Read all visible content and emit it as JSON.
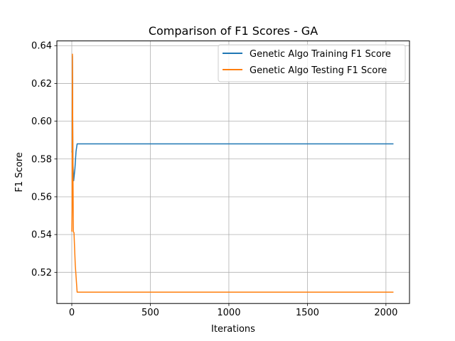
{
  "chart_data": {
    "type": "line",
    "title": "Comparison of F1 Scores - GA",
    "xlabel": "Iterations",
    "ylabel": "F1 Score",
    "xlim": [
      -95,
      2150
    ],
    "ylim": [
      0.5035,
      0.6425
    ],
    "xticks": [
      0,
      500,
      1000,
      1500,
      2000
    ],
    "yticks": [
      0.52,
      0.54,
      0.56,
      0.58,
      0.6,
      0.62,
      0.64
    ],
    "grid": true,
    "legend_position": "top-right",
    "series": [
      {
        "name": "Genetic Algo Training F1 Score",
        "color": "#1f77b4",
        "points": [
          [
            0,
            0.584
          ],
          [
            2,
            0.5835
          ],
          [
            4,
            0.6345
          ],
          [
            7,
            0.578
          ],
          [
            12,
            0.5685
          ],
          [
            20,
            0.575
          ],
          [
            27,
            0.584
          ],
          [
            34,
            0.588
          ],
          [
            100,
            0.588
          ],
          [
            500,
            0.588
          ],
          [
            1000,
            0.588
          ],
          [
            1500,
            0.588
          ],
          [
            2048,
            0.588
          ]
        ]
      },
      {
        "name": "Genetic Algo Testing F1 Score",
        "color": "#ff7f0e",
        "points": [
          [
            0,
            0.5415
          ],
          [
            2,
            0.553
          ],
          [
            4,
            0.6355
          ],
          [
            7,
            0.579
          ],
          [
            10,
            0.5415
          ],
          [
            14,
            0.541
          ],
          [
            22,
            0.524
          ],
          [
            34,
            0.5095
          ],
          [
            100,
            0.5095
          ],
          [
            500,
            0.5095
          ],
          [
            1000,
            0.5095
          ],
          [
            1500,
            0.5095
          ],
          [
            2048,
            0.5095
          ]
        ]
      }
    ]
  }
}
